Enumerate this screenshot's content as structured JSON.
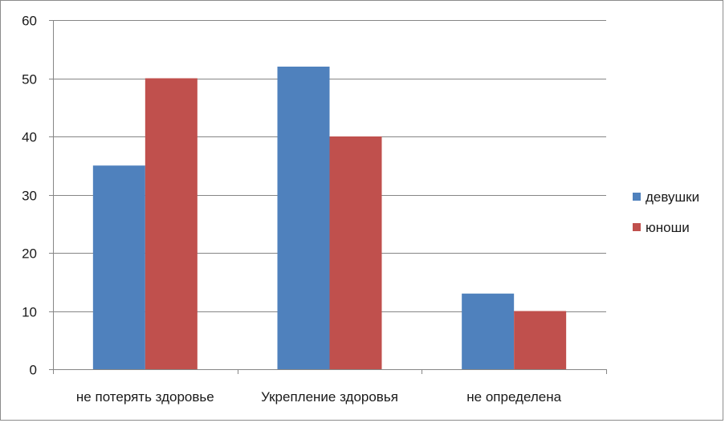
{
  "chart_data": {
    "type": "bar",
    "categories": [
      "не потерять здоровье",
      "Укрепление здоровья",
      "не определена"
    ],
    "series": [
      {
        "name": "девушки",
        "values": [
          35,
          52,
          13
        ],
        "color": "#4F81BD"
      },
      {
        "name": "юноши",
        "values": [
          50,
          40,
          10
        ],
        "color": "#C0504D"
      }
    ],
    "ylim": [
      0,
      60
    ],
    "yticks": [
      0,
      10,
      20,
      30,
      40,
      50,
      60
    ],
    "grid": true,
    "legend_position": "right",
    "title": "",
    "xlabel": "",
    "ylabel": ""
  }
}
